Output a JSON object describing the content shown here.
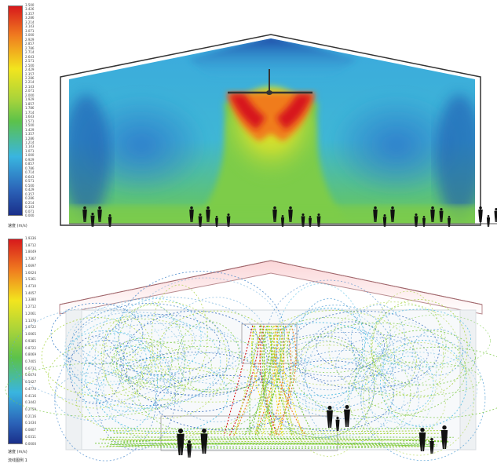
{
  "top_panel": {
    "legend": {
      "ticks": [
        "3.500",
        "3.426",
        "3.357",
        "3.286",
        "3.214",
        "3.143",
        "3.071",
        "3.000",
        "2.929",
        "2.857",
        "2.786",
        "2.714",
        "2.643",
        "2.571",
        "2.500",
        "2.429",
        "2.357",
        "2.286",
        "2.214",
        "2.143",
        "2.071",
        "2.000",
        "1.929",
        "1.857",
        "1.786",
        "1.714",
        "1.643",
        "1.571",
        "1.500",
        "1.429",
        "1.357",
        "1.286",
        "1.214",
        "1.143",
        "1.071",
        "1.000",
        "0.929",
        "0.857",
        "0.786",
        "0.714",
        "0.643",
        "0.571",
        "0.500",
        "0.429",
        "0.357",
        "0.286",
        "0.214",
        "0.143",
        "0.071",
        "0.000"
      ],
      "unit": "速度 (m/s)"
    }
  },
  "bottom_panel": {
    "legend": {
      "ticks": [
        "1.9336",
        "1.8712",
        "1.8049",
        "1.7367",
        "1.6697",
        "1.6024",
        "1.5361",
        "1.4710",
        "1.4057",
        "1.3380",
        "1.2712",
        "1.2061",
        "1.1376",
        "1.0722",
        "1.0065",
        "0.9385",
        "0.8722",
        "0.8069",
        "0.7405",
        "0.6732",
        "0.6074",
        "0.5427",
        "0.4770",
        "0.4116",
        "0.3442",
        "0.2759",
        "0.2116",
        "0.1434",
        "0.0807",
        "0.0311",
        "0.0000"
      ],
      "unit": "速度 (m/s)",
      "note": "流线图例 1"
    }
  },
  "colors": {
    "red": "#d7191c",
    "orange": "#f07c1f",
    "yellow": "#f2e51e",
    "green": "#7ac943",
    "cyan": "#39b5e0",
    "blue": "#2b63b8",
    "navy": "#1a2f8a",
    "roof_pink": "#f3d3d6"
  }
}
